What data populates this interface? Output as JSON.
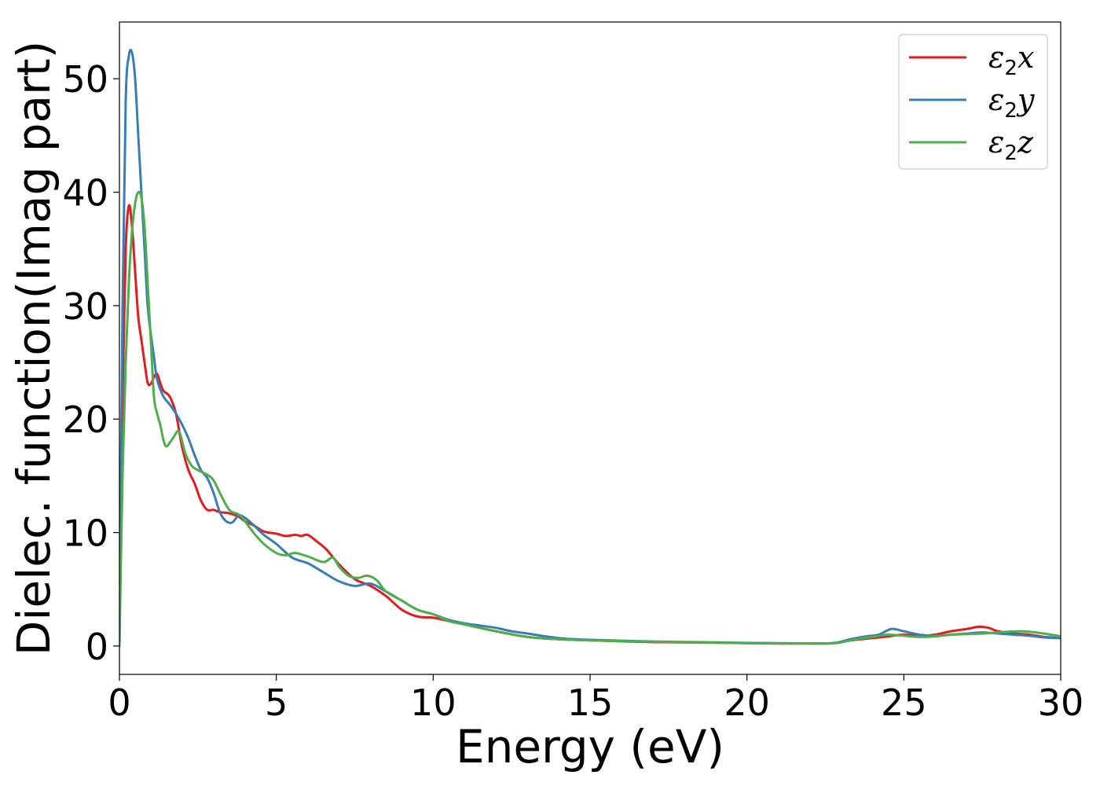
{
  "chart_data": {
    "type": "line",
    "xlabel": "Energy (eV)",
    "ylabel": "Dielec. function(Imag part)",
    "xlim": [
      0,
      30
    ],
    "ylim": [
      -2.5,
      55
    ],
    "xticks": [
      0,
      5,
      10,
      15,
      20,
      25,
      30
    ],
    "yticks": [
      0,
      10,
      20,
      30,
      40,
      50
    ],
    "xtick_labels": [
      "0",
      "5",
      "10",
      "15",
      "20",
      "25",
      "30"
    ],
    "ytick_labels": [
      "0",
      "10",
      "20",
      "30",
      "40",
      "50"
    ],
    "grid": false,
    "legend_position": "top-right",
    "series": [
      {
        "name": "ε₂x",
        "legend": {
          "symbol": "ε",
          "sub": "2",
          "axis": "x"
        },
        "color": "#e41a1c",
        "x": [
          0,
          0.1,
          0.2,
          0.3,
          0.4,
          0.5,
          0.6,
          0.7,
          0.8,
          0.9,
          1.0,
          1.1,
          1.2,
          1.3,
          1.4,
          1.6,
          1.8,
          2.0,
          2.2,
          2.4,
          2.6,
          2.8,
          3.0,
          3.2,
          3.5,
          3.8,
          4.0,
          4.3,
          4.6,
          5.0,
          5.3,
          5.6,
          5.8,
          6.0,
          6.3,
          6.6,
          7.0,
          7.5,
          8.0,
          8.5,
          9.0,
          9.5,
          10.0,
          10.5,
          11.0,
          12.0,
          13.0,
          14.0,
          15.0,
          17.0,
          19.0,
          20.0,
          21.0,
          22.0,
          22.8,
          23.3,
          24.0,
          24.5,
          25.0,
          25.5,
          26.0,
          26.5,
          27.0,
          27.4,
          27.7,
          28.0,
          28.5,
          29.0,
          29.5,
          30.0
        ],
        "y": [
          0,
          22,
          35,
          38.8,
          37,
          33,
          29,
          27,
          25,
          23.2,
          23.1,
          23.7,
          24.0,
          23.2,
          22.5,
          22.0,
          20.5,
          17.5,
          15.5,
          14.3,
          12.8,
          12.0,
          12.0,
          11.8,
          11.7,
          11.4,
          11.0,
          10.6,
          10.1,
          9.9,
          9.7,
          9.8,
          9.7,
          9.8,
          9.2,
          8.5,
          7.2,
          5.9,
          5.3,
          4.4,
          3.2,
          2.6,
          2.5,
          2.2,
          1.9,
          1.3,
          0.8,
          0.6,
          0.5,
          0.35,
          0.3,
          0.25,
          0.22,
          0.22,
          0.25,
          0.5,
          0.7,
          0.85,
          1.0,
          0.9,
          1.0,
          1.3,
          1.5,
          1.7,
          1.6,
          1.3,
          1.1,
          1.0,
          0.8,
          0.7
        ]
      },
      {
        "name": "ε₂y",
        "legend": {
          "symbol": "ε",
          "sub": "2",
          "axis": "y"
        },
        "color": "#377eb8",
        "x": [
          0,
          0.1,
          0.2,
          0.3,
          0.4,
          0.5,
          0.6,
          0.7,
          0.8,
          0.9,
          1.0,
          1.1,
          1.2,
          1.4,
          1.6,
          1.8,
          2.0,
          2.2,
          2.4,
          2.6,
          2.8,
          3.0,
          3.2,
          3.4,
          3.6,
          3.8,
          4.0,
          4.3,
          4.6,
          5.0,
          5.5,
          6.0,
          6.5,
          7.0,
          7.5,
          8.0,
          8.5,
          9.0,
          9.5,
          10.0,
          10.5,
          11.0,
          11.5,
          12.0,
          12.5,
          13.0,
          14.0,
          15.0,
          17.0,
          19.0,
          20.0,
          22.0,
          22.8,
          23.3,
          23.8,
          24.2,
          24.6,
          25.0,
          25.5,
          26.0,
          26.5,
          27.0,
          27.5,
          28.0,
          28.5,
          29.0,
          29.5,
          30.0
        ],
        "y": [
          0,
          30,
          48,
          52,
          52.3,
          50,
          45,
          40,
          35,
          30,
          27.5,
          25.5,
          23.5,
          22.0,
          21.3,
          20.5,
          19.5,
          18.3,
          16.8,
          15.5,
          14.8,
          13.5,
          11.8,
          11.0,
          10.9,
          11.5,
          11.3,
          10.6,
          9.8,
          9.0,
          7.8,
          7.3,
          6.5,
          5.7,
          5.3,
          5.5,
          4.8,
          4.0,
          3.2,
          2.8,
          2.3,
          2.0,
          1.8,
          1.6,
          1.3,
          1.1,
          0.7,
          0.55,
          0.4,
          0.32,
          0.28,
          0.23,
          0.28,
          0.6,
          0.85,
          1.0,
          1.5,
          1.3,
          1.0,
          0.9,
          1.0,
          1.1,
          1.2,
          1.1,
          1.0,
          0.9,
          0.75,
          0.7
        ]
      },
      {
        "name": "ε₂z",
        "legend": {
          "symbol": "ε",
          "sub": "2",
          "axis": "z"
        },
        "color": "#4daf4a",
        "x": [
          0,
          0.1,
          0.2,
          0.3,
          0.4,
          0.5,
          0.6,
          0.7,
          0.8,
          0.9,
          1.0,
          1.1,
          1.2,
          1.3,
          1.4,
          1.5,
          1.7,
          1.9,
          2.1,
          2.3,
          2.5,
          2.8,
          3.0,
          3.2,
          3.5,
          3.8,
          4.0,
          4.3,
          4.6,
          5.0,
          5.3,
          5.6,
          6.0,
          6.5,
          6.8,
          7.0,
          7.3,
          7.6,
          7.9,
          8.2,
          8.5,
          9.0,
          9.5,
          10.0,
          10.5,
          11.0,
          11.5,
          12.0,
          13.0,
          14.0,
          15.0,
          17.0,
          19.0,
          20.0,
          22.0,
          22.8,
          23.5,
          24.0,
          24.5,
          25.0,
          25.5,
          26.0,
          26.5,
          27.0,
          27.5,
          28.0,
          28.7,
          29.2,
          29.7,
          30.0
        ],
        "y": [
          0,
          15,
          25,
          32,
          36.5,
          39,
          40,
          39.5,
          37,
          32,
          27,
          22,
          20.5,
          19.5,
          18.2,
          17.6,
          18.3,
          18.9,
          17.0,
          15.9,
          15.5,
          15.1,
          14.6,
          13.5,
          12.0,
          11.6,
          11.0,
          9.9,
          9.0,
          8.2,
          8.0,
          8.2,
          7.9,
          7.4,
          7.8,
          7.0,
          6.2,
          6.0,
          6.2,
          5.8,
          4.8,
          4.0,
          3.2,
          2.8,
          2.2,
          1.9,
          1.6,
          1.3,
          0.8,
          0.6,
          0.5,
          0.38,
          0.3,
          0.26,
          0.22,
          0.25,
          0.6,
          0.8,
          1.0,
          0.9,
          0.8,
          0.85,
          1.0,
          1.05,
          1.1,
          1.2,
          1.3,
          1.2,
          1.0,
          0.85
        ]
      }
    ]
  }
}
